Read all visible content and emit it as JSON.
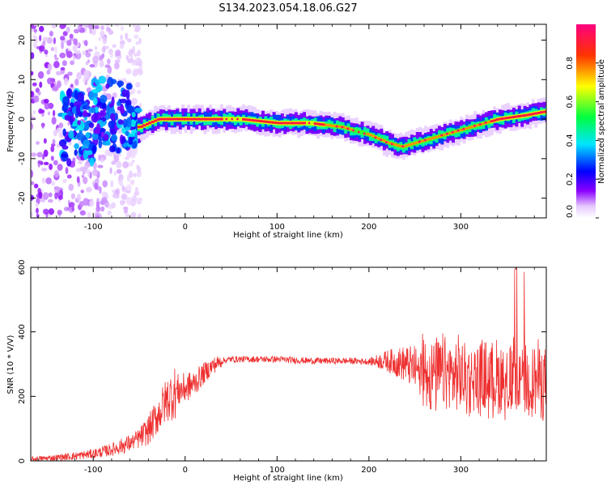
{
  "title": "S134.2023.054.18.06.G27",
  "chart_data": [
    {
      "type": "heatmap",
      "xlabel": "Height of straight line (km)",
      "ylabel": "Frequency (Hz)",
      "xlim": [
        -168,
        393
      ],
      "ylim": [
        -25,
        24
      ],
      "xticks": [
        -100,
        0,
        100,
        200,
        300
      ],
      "yticks": [
        -20,
        -10,
        0,
        10,
        20
      ],
      "colorbar": {
        "label": "Normalized spectral amplitude",
        "range": [
          0,
          1
        ],
        "ticks": [
          "0.0",
          "0.2",
          "0.4",
          "0.6",
          "0.8"
        ],
        "colormap": [
          "#ffffff",
          "#e6c9ff",
          "#8a00ff",
          "#0000ff",
          "#00e5ff",
          "#00ff40",
          "#ffff00",
          "#ff3300",
          "#ff0080"
        ]
      },
      "ridge": {
        "x": [
          -50,
          -40,
          -30,
          -20,
          0,
          60,
          100,
          135,
          170,
          200,
          220,
          235,
          250,
          280,
          310,
          340,
          370,
          393
        ],
        "y": [
          -2,
          -1,
          0,
          0,
          0,
          0,
          -1,
          -1,
          -2,
          -4,
          -6,
          -7,
          -6,
          -4,
          -2,
          0,
          1,
          2
        ]
      }
    },
    {
      "type": "line",
      "xlabel": "Height of straight line (km)",
      "ylabel": "SNR (10 * V/V)",
      "xlim": [
        -168,
        393
      ],
      "ylim": [
        0,
        600
      ],
      "xticks": [
        -100,
        0,
        100,
        200,
        300
      ],
      "yticks": [
        0,
        200,
        400,
        600
      ],
      "color": "#ee3030",
      "series": [
        {
          "x": [
            -168,
            -140,
            -120,
            -100,
            -80,
            -60,
            -50,
            -40,
            -30,
            -20,
            -10,
            0,
            10,
            20,
            30,
            40,
            50,
            60,
            80,
            100,
            120,
            140,
            160,
            180,
            200,
            220,
            240,
            255,
            270,
            300,
            330,
            360,
            393
          ],
          "y": [
            5,
            10,
            15,
            22,
            35,
            55,
            70,
            95,
            140,
            190,
            215,
            225,
            240,
            270,
            295,
            310,
            315,
            315,
            315,
            315,
            312,
            310,
            310,
            310,
            308,
            310,
            300,
            280,
            270,
            260,
            255,
            255,
            250
          ]
        }
      ]
    }
  ]
}
